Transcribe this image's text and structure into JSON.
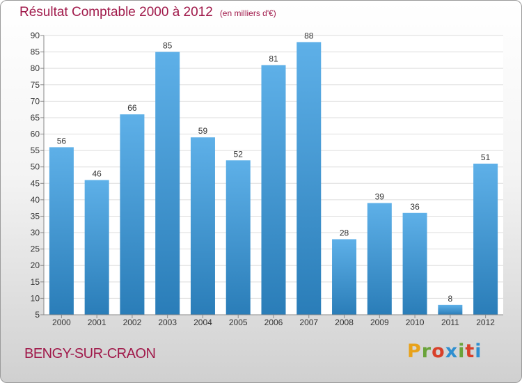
{
  "header": {
    "title": "Résultat Comptable 2000 à 2012",
    "unit": "(en milliers d'€)"
  },
  "footer": {
    "city": "BENGY-SUR-CRAON",
    "logo_text": "Proxiti",
    "logo_colors": [
      "#e8a21a",
      "#6aa33a",
      "#d8402a",
      "#2f8fd0",
      "#6aa33a",
      "#d8402a",
      "#2f8fd0"
    ]
  },
  "colors": {
    "title": "#a0194a",
    "bar_dark": "#2a7db8",
    "bar_light": "#5eb0e8",
    "grid": "#dddddd",
    "axis_text": "#333333"
  },
  "chart_data": {
    "type": "bar",
    "title": "Résultat Comptable 2000 à 2012",
    "categories": [
      "2000",
      "2001",
      "2002",
      "2003",
      "2004",
      "2005",
      "2006",
      "2007",
      "2008",
      "2009",
      "2010",
      "2011",
      "2012"
    ],
    "values": [
      56,
      46,
      66,
      85,
      59,
      52,
      81,
      88,
      28,
      39,
      36,
      8,
      51
    ],
    "ylim": [
      5,
      90
    ],
    "yticks": [
      5,
      10,
      15,
      20,
      25,
      30,
      35,
      40,
      45,
      50,
      55,
      60,
      65,
      70,
      75,
      80,
      85,
      90
    ],
    "grid": true
  }
}
